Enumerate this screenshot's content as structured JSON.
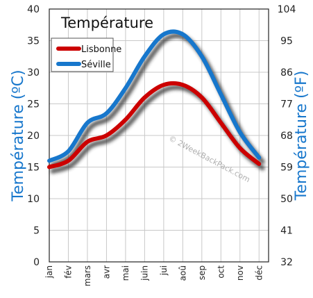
{
  "chart_data": {
    "type": "line",
    "title": "Température",
    "ylabel_left": "Température  (ºC)",
    "ylabel_right": "Température  (ºF)",
    "categories": [
      "jan",
      "fév",
      "mars",
      "avr",
      "mai",
      "juin",
      "jui",
      "aoû",
      "sep",
      "oct",
      "nov",
      "déc"
    ],
    "ylim_left": [
      0,
      40
    ],
    "yticks_left": [
      "0",
      "5",
      "10",
      "15",
      "20",
      "25",
      "30",
      "35",
      "40"
    ],
    "ylim_right": [
      32,
      104
    ],
    "yticks_right": [
      "32",
      "41",
      "50",
      "59",
      "68",
      "77",
      "86",
      "95",
      "104"
    ],
    "grid": true,
    "legend_position": "top-left",
    "series": [
      {
        "name": "Lisbonne",
        "color": "#cc0000",
        "values": [
          15.0,
          16.0,
          19.0,
          20.0,
          22.5,
          26.0,
          28.0,
          28.0,
          26.0,
          22.0,
          18.0,
          15.5
        ]
      },
      {
        "name": "Séville",
        "color": "#1777cc",
        "values": [
          16.0,
          17.5,
          22.0,
          23.5,
          27.5,
          32.5,
          36.0,
          36.0,
          32.5,
          26.5,
          20.5,
          16.5
        ]
      }
    ],
    "watermark": "© 2WeekBackPack.com"
  }
}
